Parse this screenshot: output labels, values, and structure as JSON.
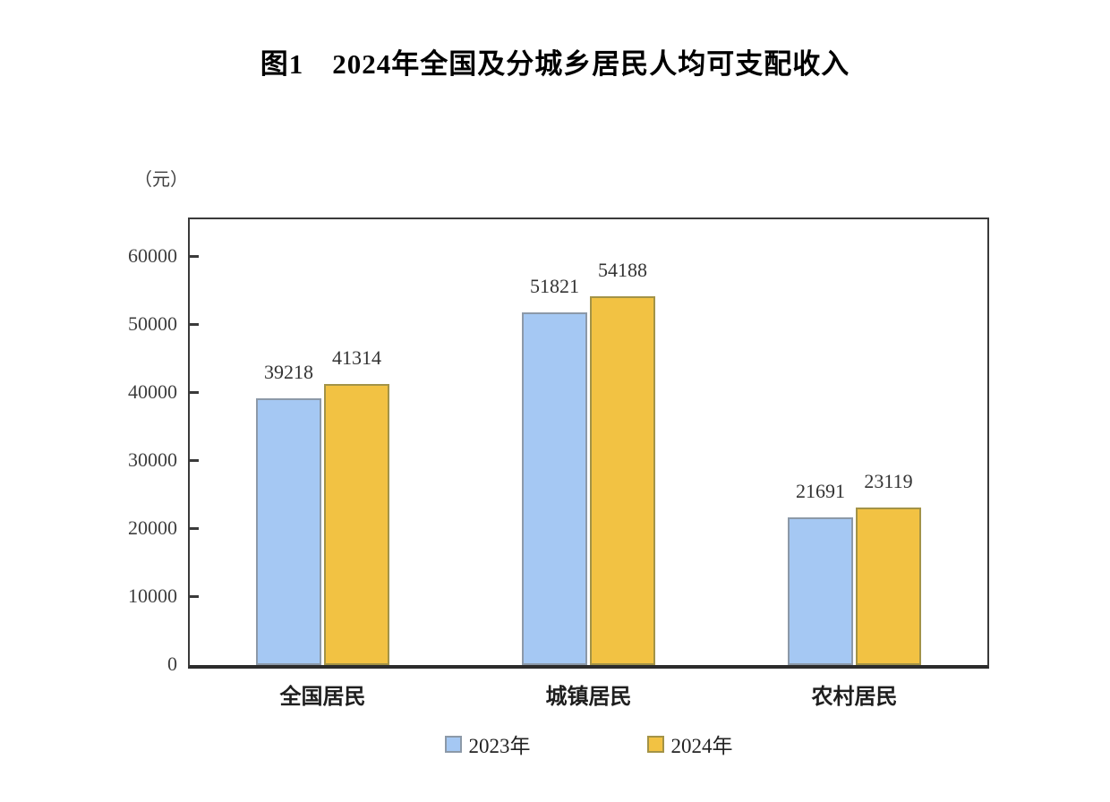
{
  "title": "图1　2024年全国及分城乡居民人均可支配收入",
  "unit_label": "（元）",
  "chart_data": {
    "type": "bar",
    "figure_label": "图1",
    "title": "2024年全国及分城乡居民人均可支配收入",
    "unit": "元",
    "categories": [
      "全国居民",
      "城镇居民",
      "农村居民"
    ],
    "series": [
      {
        "name": "2023年",
        "values": [
          39218,
          51821,
          21691
        ],
        "fill": "#a5c8f3",
        "stroke": "#8c99a8"
      },
      {
        "name": "2024年",
        "values": [
          41314,
          54188,
          23119
        ],
        "fill": "#f2c243",
        "stroke": "#a39347"
      }
    ],
    "ylabel": "（元）",
    "ylim": [
      0,
      65500
    ],
    "yticks": [
      0,
      10000,
      20000,
      30000,
      40000,
      50000,
      60000
    ],
    "grid": false,
    "legend_position": "bottom",
    "bar_value_labels": true
  }
}
